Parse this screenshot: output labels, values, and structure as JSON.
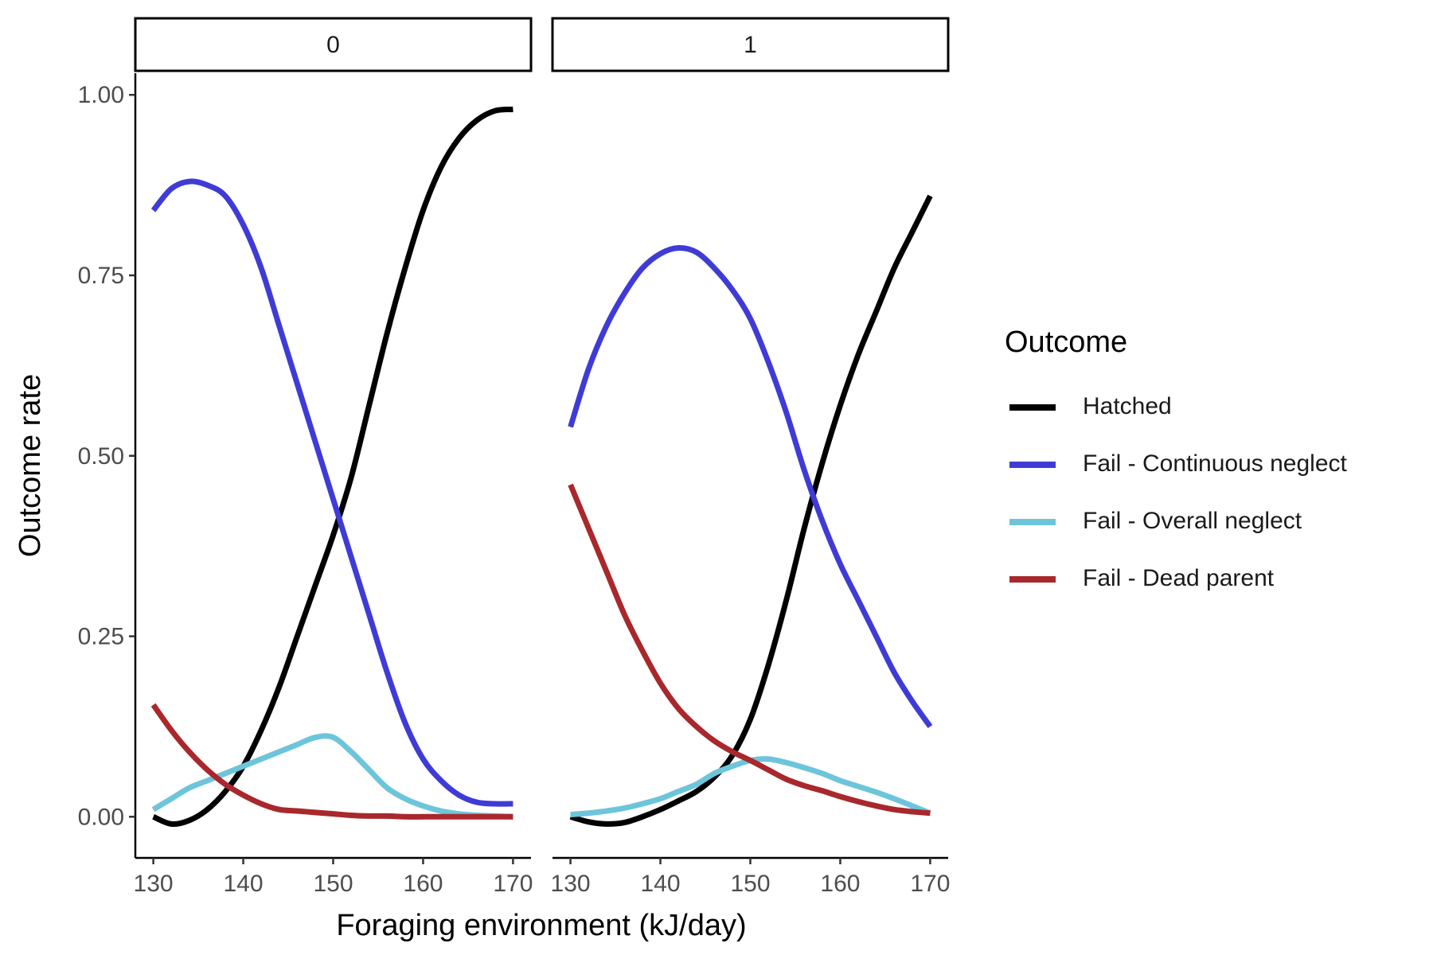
{
  "chart_data": {
    "type": "line",
    "xlabel": "Foraging environment (kJ/day)",
    "ylabel": "Outcome rate",
    "xlim": [
      128,
      172
    ],
    "ylim": [
      -0.057,
      1.03
    ],
    "x_ticks": [
      130,
      140,
      150,
      160,
      170
    ],
    "y_ticks": [
      0.0,
      0.25,
      0.5,
      0.75,
      1.0
    ],
    "y_tick_labels": [
      "0.00",
      "0.25",
      "0.50",
      "0.75",
      "1.00"
    ],
    "grid": false,
    "legend": {
      "title": "Outcome",
      "placement": "right",
      "entries": [
        {
          "name": "Hatched",
          "color": "#000000"
        },
        {
          "name": "Fail - Continuous neglect",
          "color": "#3F3BD6"
        },
        {
          "name": "Fail - Overall neglect",
          "color": "#6CC5DA"
        },
        {
          "name": "Fail - Dead parent",
          "color": "#A8282C"
        }
      ]
    },
    "panels": [
      {
        "label": "0",
        "series": [
          {
            "name": "Hatched",
            "color": "#000000",
            "x": [
              130,
              132,
              134,
              136,
              138,
              140,
              142,
              144,
              146,
              148,
              150,
              152,
              154,
              156,
              158,
              160,
              162,
              164,
              166,
              168,
              170
            ],
            "y": [
              0.0,
              -0.01,
              -0.005,
              0.01,
              0.035,
              0.07,
              0.12,
              0.18,
              0.25,
              0.32,
              0.39,
              0.47,
              0.57,
              0.67,
              0.76,
              0.84,
              0.9,
              0.94,
              0.965,
              0.978,
              0.98
            ]
          },
          {
            "name": "Fail - Continuous neglect",
            "color": "#3F3BD6",
            "x": [
              130,
              132,
              134,
              136,
              138,
              140,
              142,
              144,
              146,
              148,
              150,
              152,
              154,
              156,
              158,
              160,
              162,
              164,
              166,
              168,
              170
            ],
            "y": [
              0.84,
              0.87,
              0.88,
              0.875,
              0.86,
              0.82,
              0.76,
              0.68,
              0.6,
              0.52,
              0.44,
              0.36,
              0.28,
              0.2,
              0.13,
              0.08,
              0.05,
              0.03,
              0.02,
              0.018,
              0.018
            ]
          },
          {
            "name": "Fail - Overall neglect",
            "color": "#6CC5DA",
            "x": [
              130,
              132,
              134,
              136,
              138,
              140,
              142,
              144,
              146,
              148,
              150,
              152,
              154,
              156,
              158,
              160,
              162,
              164,
              166,
              168,
              170
            ],
            "y": [
              0.01,
              0.025,
              0.04,
              0.05,
              0.06,
              0.07,
              0.08,
              0.09,
              0.1,
              0.11,
              0.11,
              0.09,
              0.065,
              0.04,
              0.025,
              0.015,
              0.008,
              0.004,
              0.002,
              0.001,
              0.0
            ]
          },
          {
            "name": "Fail - Dead parent",
            "color": "#A8282C",
            "x": [
              130,
              132,
              134,
              136,
              138,
              140,
              142,
              144,
              146,
              148,
              150,
              152,
              154,
              156,
              158,
              160,
              162,
              164,
              166,
              168,
              170
            ],
            "y": [
              0.155,
              0.12,
              0.09,
              0.065,
              0.045,
              0.03,
              0.018,
              0.01,
              0.008,
              0.006,
              0.004,
              0.002,
              0.001,
              0.001,
              0.0,
              0.0,
              0.0,
              0.0,
              0.0,
              0.0,
              0.0
            ]
          }
        ]
      },
      {
        "label": "1",
        "series": [
          {
            "name": "Hatched",
            "color": "#000000",
            "x": [
              130,
              132,
              134,
              136,
              138,
              140,
              142,
              144,
              146,
              148,
              150,
              152,
              154,
              156,
              158,
              160,
              162,
              164,
              166,
              168,
              170
            ],
            "y": [
              0.0,
              -0.007,
              -0.01,
              -0.008,
              0.0,
              0.01,
              0.022,
              0.035,
              0.055,
              0.085,
              0.135,
              0.21,
              0.3,
              0.4,
              0.49,
              0.57,
              0.64,
              0.7,
              0.76,
              0.81,
              0.86
            ]
          },
          {
            "name": "Fail - Continuous neglect",
            "color": "#3F3BD6",
            "x": [
              130,
              132,
              134,
              136,
              138,
              140,
              142,
              144,
              146,
              148,
              150,
              152,
              154,
              156,
              158,
              160,
              162,
              164,
              166,
              168,
              170
            ],
            "y": [
              0.54,
              0.62,
              0.68,
              0.725,
              0.76,
              0.78,
              0.788,
              0.782,
              0.76,
              0.73,
              0.69,
              0.63,
              0.56,
              0.48,
              0.41,
              0.35,
              0.3,
              0.25,
              0.2,
              0.16,
              0.125
            ]
          },
          {
            "name": "Fail - Overall neglect",
            "color": "#6CC5DA",
            "x": [
              130,
              132,
              134,
              136,
              138,
              140,
              142,
              144,
              146,
              148,
              150,
              152,
              154,
              156,
              158,
              160,
              162,
              164,
              166,
              168,
              170
            ],
            "y": [
              0.003,
              0.005,
              0.008,
              0.012,
              0.018,
              0.025,
              0.035,
              0.045,
              0.06,
              0.07,
              0.078,
              0.08,
              0.075,
              0.068,
              0.06,
              0.05,
              0.042,
              0.034,
              0.025,
              0.015,
              0.005
            ]
          },
          {
            "name": "Fail - Dead parent",
            "color": "#A8282C",
            "x": [
              130,
              132,
              134,
              136,
              138,
              140,
              142,
              144,
              146,
              148,
              150,
              152,
              154,
              156,
              158,
              160,
              162,
              164,
              166,
              168,
              170
            ],
            "y": [
              0.46,
              0.4,
              0.34,
              0.28,
              0.23,
              0.185,
              0.15,
              0.125,
              0.105,
              0.09,
              0.078,
              0.065,
              0.052,
              0.043,
              0.036,
              0.028,
              0.021,
              0.015,
              0.01,
              0.007,
              0.005
            ]
          }
        ]
      }
    ]
  }
}
